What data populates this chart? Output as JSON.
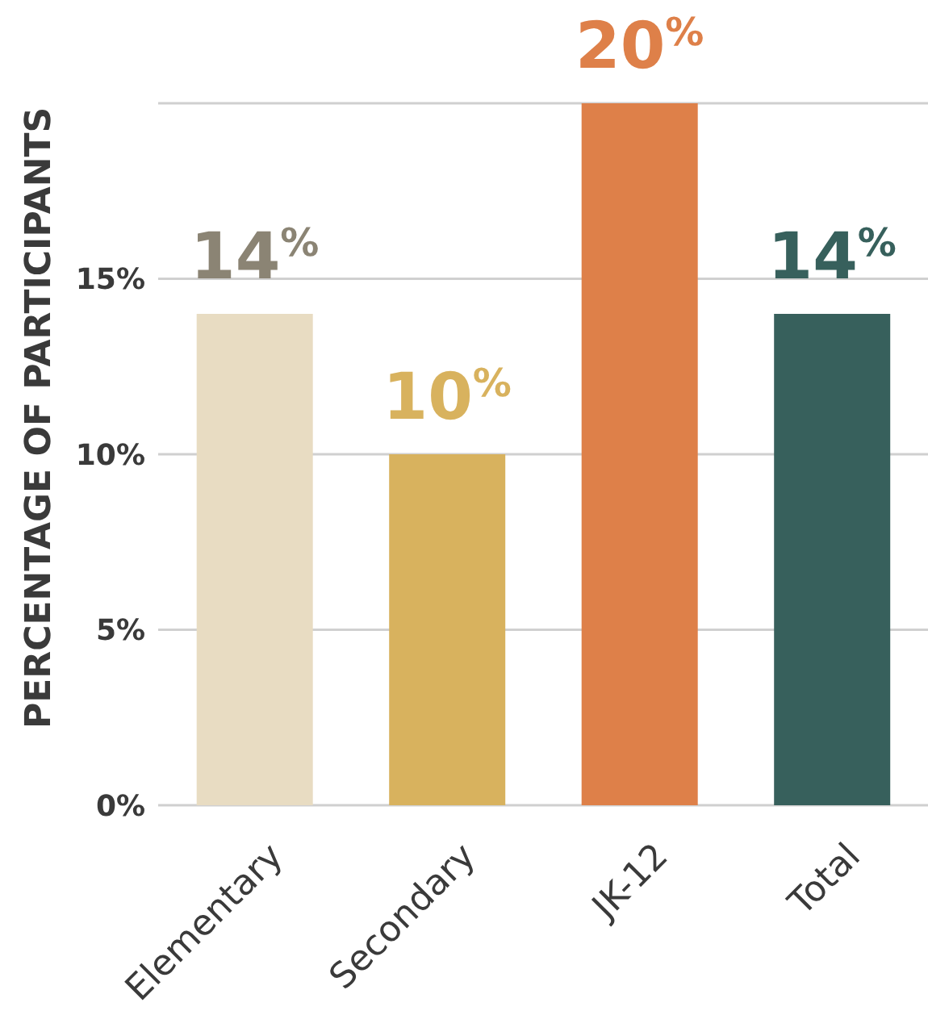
{
  "chart_data": {
    "type": "bar",
    "ylabel": "PERCENTAGE OF PARTICIPANTS",
    "categories": [
      "Elementary",
      "Secondary",
      "JK-12",
      "Total"
    ],
    "values": [
      14,
      10,
      20,
      14
    ],
    "colors": [
      "#e8dcc2",
      "#d8b25e",
      "#de8049",
      "#37605c"
    ],
    "value_labels": [
      "14$^{%}$",
      "10$^{%}$",
      "20$^{%}$",
      "14$^{%}$"
    ],
    "ylim": [
      0,
      20
    ],
    "yticks": [
      {
        "value": 0,
        "label": "0%"
      },
      {
        "value": 5,
        "label": "5%"
      },
      {
        "value": 10,
        "label": "10%"
      },
      {
        "value": 15,
        "label": "15%"
      }
    ],
    "grid": "y"
  }
}
